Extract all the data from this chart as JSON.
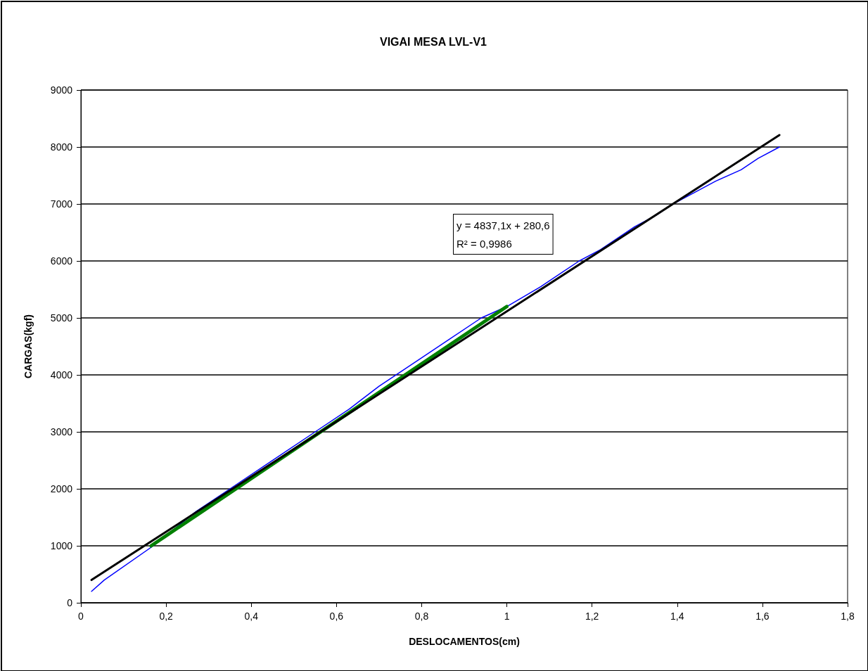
{
  "chart_data": {
    "type": "line",
    "title": "VIGAI MESA LVL-V1",
    "xlabel": "DESLOCAMENTOS(cm)",
    "ylabel": "CARGAS(kgf)",
    "annotations": [
      "y = 4837,1x + 280,6\nR² = 0,9986"
    ],
    "xlim": [
      0,
      1.8
    ],
    "xticks": [
      {
        "value": 0,
        "label": "0"
      },
      {
        "value": 0.2,
        "label": "0,2"
      },
      {
        "value": 0.4,
        "label": "0,4"
      },
      {
        "value": 0.6,
        "label": "0,6"
      },
      {
        "value": 0.8,
        "label": "0,8"
      },
      {
        "value": 1,
        "label": "1"
      },
      {
        "value": 1.2,
        "label": "1,2"
      },
      {
        "value": 1.4,
        "label": "1,4"
      },
      {
        "value": 1.6,
        "label": "1,6"
      },
      {
        "value": 1.8,
        "label": "1,8"
      }
    ],
    "ylim": [
      0,
      9000
    ],
    "yticks": [
      0,
      1000,
      2000,
      3000,
      4000,
      5000,
      6000,
      7000,
      8000,
      9000
    ],
    "grid": "y",
    "marker": "none",
    "line_style": "solid",
    "series": [
      {
        "color": "#0000ff",
        "x": [
          0.025,
          0.055,
          0.17,
          0.27,
          0.35,
          0.43,
          0.48,
          0.55,
          0.63,
          0.7,
          0.76,
          0.86,
          0.94,
          1.0,
          1.08,
          1.13,
          1.17,
          1.22,
          1.26,
          1.3,
          1.35,
          1.39,
          1.44,
          1.49,
          1.55,
          1.59,
          1.64
        ],
        "values": [
          200,
          400,
          1000,
          1600,
          2000,
          2400,
          2650,
          3000,
          3400,
          3800,
          4100,
          4600,
          5000,
          5200,
          5550,
          5800,
          6000,
          6200,
          6400,
          6600,
          6800,
          7000,
          7200,
          7400,
          7600,
          7800,
          8000
        ]
      },
      {
        "color": "#008000",
        "x": [
          0.165,
          1.0
        ],
        "values": [
          1000,
          5200
        ]
      },
      {
        "color": "#000000",
        "x": [
          0.025,
          1.64
        ],
        "values": [
          400,
          8210
        ]
      }
    ]
  }
}
